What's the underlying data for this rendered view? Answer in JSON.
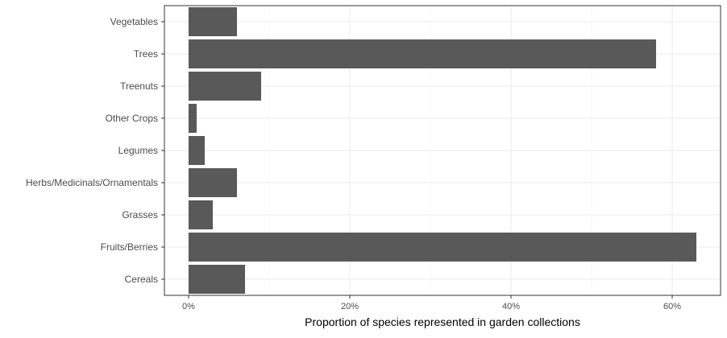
{
  "chart_data": {
    "type": "bar",
    "orientation": "horizontal",
    "categories": [
      "Vegetables",
      "Trees",
      "Treenuts",
      "Other Crops",
      "Legumes",
      "Herbs/Medicinals/Ornamentals",
      "Grasses",
      "Fruits/Berries",
      "Cereals"
    ],
    "values": [
      6,
      58,
      9,
      1,
      2,
      6,
      3,
      63,
      7
    ],
    "value_unit": "percent",
    "title": "",
    "xlabel": "Proportion of species represented in garden collections",
    "ylabel": "",
    "xlim": [
      -3,
      66
    ],
    "xticks": [
      0,
      20,
      40,
      60
    ],
    "xtick_labels": [
      "0%",
      "20%",
      "40%",
      "60%"
    ],
    "grid": true,
    "legend": "none",
    "colors": {
      "bar": "#595959",
      "grid_major": "#ebebeb",
      "grid_minor": "#f5f5f5",
      "panel_border": "#333333",
      "background": "#ffffff"
    }
  }
}
